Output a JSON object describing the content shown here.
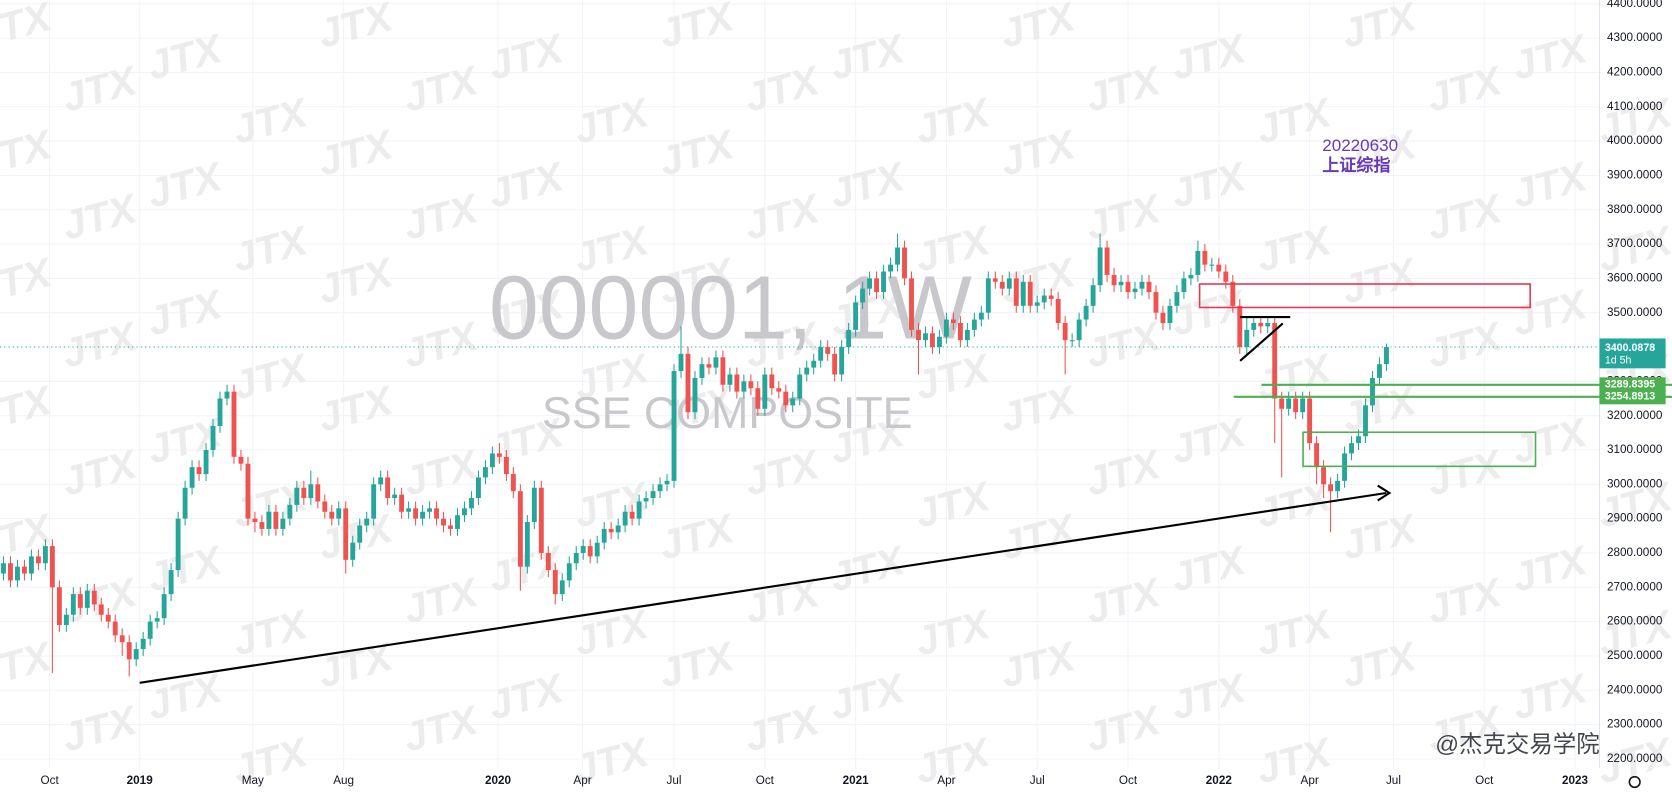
{
  "chart_data": {
    "type": "candlestick",
    "title": "000001, 1W",
    "subtitle": "SSE COMPOSITE",
    "annotations": [
      "20220630",
      "上证综指"
    ],
    "watermark": "JTX",
    "credit": "@杰克交易学院",
    "last_price_countdown": "1d 5h",
    "levels": [
      3289.8395,
      3254.8913
    ],
    "up_color": "#26a69a",
    "down_color": "#ef5350",
    "grid": true,
    "xlim": [
      -0.5,
      228.5
    ],
    "xticks": [
      {
        "value": 6.6,
        "label": "Oct"
      },
      {
        "value": 19.5,
        "label": "2019"
      },
      {
        "value": 35.7,
        "label": "May"
      },
      {
        "value": 48.7,
        "label": "Aug"
      },
      {
        "value": 70.8,
        "label": "2020"
      },
      {
        "value": 82.9,
        "label": "Apr"
      },
      {
        "value": 96,
        "label": "Jul"
      },
      {
        "value": 109,
        "label": "Oct"
      },
      {
        "value": 122,
        "label": "2021"
      },
      {
        "value": 135,
        "label": "Apr"
      },
      {
        "value": 148,
        "label": "Jul"
      },
      {
        "value": 161,
        "label": "Oct"
      },
      {
        "value": 174,
        "label": "2022"
      },
      {
        "value": 187,
        "label": "Apr"
      },
      {
        "value": 199,
        "label": "Jul"
      },
      {
        "value": 212,
        "label": "Oct"
      },
      {
        "value": 225,
        "label": "2023"
      }
    ],
    "ylim": [
      2170,
      4410
    ],
    "yticks": [
      {
        "value": 2200,
        "label": "2200.0000"
      },
      {
        "value": 2300,
        "label": "2300.0000"
      },
      {
        "value": 2400,
        "label": "2400.0000"
      },
      {
        "value": 2500,
        "label": "2500.0000"
      },
      {
        "value": 2600,
        "label": "2600.0000"
      },
      {
        "value": 2700,
        "label": "2700.0000"
      },
      {
        "value": 2800,
        "label": "2800.0000"
      },
      {
        "value": 2900,
        "label": "2900.0000"
      },
      {
        "value": 3000,
        "label": "3000.0000"
      },
      {
        "value": 3100,
        "label": "3100.0000"
      },
      {
        "value": 3200,
        "label": "3200.0000"
      },
      {
        "value": 3300,
        "label": "3300.0000"
      },
      {
        "value": 3400,
        "label": "3400.0000"
      },
      {
        "value": 3500,
        "label": "3500.0000"
      },
      {
        "value": 3600,
        "label": "3600.0000"
      },
      {
        "value": 3700,
        "label": "3700.0000"
      },
      {
        "value": 3800,
        "label": "3800.0000"
      },
      {
        "value": 3900,
        "label": "3900.0000"
      },
      {
        "value": 4000,
        "label": "4000.0000"
      },
      {
        "value": 4100,
        "label": "4100.0000"
      },
      {
        "value": 4200,
        "label": "4200.0000"
      },
      {
        "value": 4300,
        "label": "4300.0000"
      },
      {
        "value": 4400,
        "label": "4400.0000"
      }
    ],
    "candles": [
      [
        2740,
        2790,
        2720,
        2770
      ],
      [
        2770,
        2790,
        2700,
        2720
      ],
      [
        2720,
        2780,
        2700,
        2760
      ],
      [
        2760,
        2780,
        2720,
        2740
      ],
      [
        2740,
        2810,
        2720,
        2790
      ],
      [
        2790,
        2810,
        2750,
        2770
      ],
      [
        2770,
        2840,
        2750,
        2820
      ],
      [
        2820,
        2840,
        2450,
        2700
      ],
      [
        2700,
        2720,
        2570,
        2590
      ],
      [
        2590,
        2640,
        2570,
        2620
      ],
      [
        2620,
        2700,
        2600,
        2680
      ],
      [
        2680,
        2700,
        2620,
        2640
      ],
      [
        2640,
        2710,
        2620,
        2690
      ],
      [
        2690,
        2710,
        2630,
        2650
      ],
      [
        2650,
        2670,
        2600,
        2620
      ],
      [
        2620,
        2640,
        2580,
        2600
      ],
      [
        2600,
        2620,
        2540,
        2560
      ],
      [
        2560,
        2580,
        2500,
        2540
      ],
      [
        2540,
        2560,
        2440,
        2490
      ],
      [
        2490,
        2540,
        2470,
        2520
      ],
      [
        2520,
        2570,
        2500,
        2550
      ],
      [
        2550,
        2620,
        2530,
        2600
      ],
      [
        2600,
        2630,
        2580,
        2610
      ],
      [
        2610,
        2700,
        2590,
        2680
      ],
      [
        2680,
        2770,
        2660,
        2750
      ],
      [
        2750,
        2920,
        2730,
        2900
      ],
      [
        2900,
        3010,
        2880,
        2990
      ],
      [
        2990,
        3070,
        2970,
        3050
      ],
      [
        3050,
        3070,
        3010,
        3030
      ],
      [
        3030,
        3120,
        3010,
        3100
      ],
      [
        3100,
        3190,
        3080,
        3170
      ],
      [
        3170,
        3270,
        3150,
        3250
      ],
      [
        3250,
        3290,
        3230,
        3270
      ],
      [
        3270,
        3290,
        3060,
        3080
      ],
      [
        3080,
        3100,
        3040,
        3060
      ],
      [
        3060,
        3080,
        2880,
        2900
      ],
      [
        2900,
        2920,
        2860,
        2890
      ],
      [
        2890,
        2910,
        2850,
        2870
      ],
      [
        2870,
        2940,
        2850,
        2920
      ],
      [
        2920,
        2940,
        2850,
        2870
      ],
      [
        2870,
        2920,
        2850,
        2900
      ],
      [
        2900,
        2960,
        2880,
        2940
      ],
      [
        2940,
        3010,
        2920,
        2990
      ],
      [
        2990,
        3010,
        2940,
        2960
      ],
      [
        2960,
        3040,
        2940,
        3000
      ],
      [
        3000,
        3020,
        2930,
        2950
      ],
      [
        2950,
        2970,
        2900,
        2920
      ],
      [
        2920,
        2940,
        2880,
        2900
      ],
      [
        2900,
        2950,
        2880,
        2930
      ],
      [
        2930,
        2950,
        2740,
        2780
      ],
      [
        2780,
        2850,
        2760,
        2830
      ],
      [
        2830,
        2900,
        2810,
        2880
      ],
      [
        2880,
        2920,
        2860,
        2900
      ],
      [
        2900,
        3020,
        2880,
        3000
      ],
      [
        3000,
        3040,
        2980,
        3020
      ],
      [
        3020,
        3040,
        2940,
        2960
      ],
      [
        2960,
        2990,
        2940,
        2970
      ],
      [
        2970,
        2990,
        2900,
        2920
      ],
      [
        2920,
        2950,
        2900,
        2930
      ],
      [
        2930,
        2950,
        2880,
        2900
      ],
      [
        2900,
        2940,
        2880,
        2920
      ],
      [
        2920,
        2950,
        2900,
        2930
      ],
      [
        2930,
        2950,
        2880,
        2900
      ],
      [
        2900,
        2920,
        2860,
        2880
      ],
      [
        2880,
        2900,
        2850,
        2870
      ],
      [
        2870,
        2930,
        2850,
        2910
      ],
      [
        2910,
        2950,
        2890,
        2930
      ],
      [
        2930,
        2980,
        2910,
        2960
      ],
      [
        2960,
        3040,
        2940,
        3020
      ],
      [
        3020,
        3070,
        3000,
        3050
      ],
      [
        3050,
        3110,
        3030,
        3090
      ],
      [
        3090,
        3120,
        3060,
        3080
      ],
      [
        3080,
        3100,
        3010,
        3030
      ],
      [
        3030,
        3050,
        2960,
        2980
      ],
      [
        2980,
        3000,
        2690,
        2760
      ],
      [
        2760,
        2910,
        2740,
        2890
      ],
      [
        2890,
        3010,
        2870,
        2990
      ],
      [
        2990,
        3010,
        2780,
        2800
      ],
      [
        2800,
        2820,
        2730,
        2750
      ],
      [
        2750,
        2770,
        2650,
        2680
      ],
      [
        2680,
        2740,
        2660,
        2720
      ],
      [
        2720,
        2790,
        2700,
        2770
      ],
      [
        2770,
        2820,
        2750,
        2800
      ],
      [
        2800,
        2840,
        2780,
        2820
      ],
      [
        2820,
        2840,
        2770,
        2790
      ],
      [
        2790,
        2850,
        2770,
        2830
      ],
      [
        2830,
        2890,
        2810,
        2870
      ],
      [
        2870,
        2890,
        2840,
        2860
      ],
      [
        2860,
        2900,
        2840,
        2880
      ],
      [
        2880,
        2940,
        2860,
        2920
      ],
      [
        2920,
        2940,
        2880,
        2900
      ],
      [
        2900,
        2970,
        2880,
        2950
      ],
      [
        2950,
        2980,
        2930,
        2960
      ],
      [
        2960,
        3000,
        2940,
        2980
      ],
      [
        2980,
        3020,
        2960,
        3000
      ],
      [
        3000,
        3030,
        2980,
        3010
      ],
      [
        3010,
        3350,
        2990,
        3330
      ],
      [
        3330,
        3460,
        3310,
        3380
      ],
      [
        3380,
        3400,
        3190,
        3210
      ],
      [
        3210,
        3330,
        3190,
        3310
      ],
      [
        3310,
        3370,
        3290,
        3350
      ],
      [
        3350,
        3370,
        3320,
        3340
      ],
      [
        3340,
        3390,
        3320,
        3370
      ],
      [
        3370,
        3390,
        3270,
        3290
      ],
      [
        3290,
        3340,
        3270,
        3320
      ],
      [
        3320,
        3340,
        3250,
        3270
      ],
      [
        3270,
        3320,
        3250,
        3300
      ],
      [
        3300,
        3320,
        3260,
        3280
      ],
      [
        3280,
        3300,
        3200,
        3220
      ],
      [
        3220,
        3340,
        3200,
        3320
      ],
      [
        3320,
        3340,
        3260,
        3280
      ],
      [
        3280,
        3300,
        3250,
        3270
      ],
      [
        3270,
        3290,
        3210,
        3230
      ],
      [
        3230,
        3270,
        3210,
        3250
      ],
      [
        3250,
        3340,
        3230,
        3320
      ],
      [
        3320,
        3360,
        3300,
        3340
      ],
      [
        3340,
        3380,
        3320,
        3360
      ],
      [
        3360,
        3420,
        3340,
        3400
      ],
      [
        3400,
        3420,
        3360,
        3380
      ],
      [
        3380,
        3400,
        3300,
        3320
      ],
      [
        3320,
        3420,
        3300,
        3400
      ],
      [
        3400,
        3470,
        3380,
        3450
      ],
      [
        3450,
        3550,
        3430,
        3530
      ],
      [
        3530,
        3590,
        3510,
        3570
      ],
      [
        3570,
        3620,
        3550,
        3600
      ],
      [
        3600,
        3620,
        3540,
        3560
      ],
      [
        3560,
        3640,
        3540,
        3620
      ],
      [
        3620,
        3660,
        3600,
        3640
      ],
      [
        3640,
        3730,
        3620,
        3690
      ],
      [
        3690,
        3710,
        3580,
        3600
      ],
      [
        3600,
        3620,
        3430,
        3450
      ],
      [
        3450,
        3470,
        3320,
        3420
      ],
      [
        3420,
        3460,
        3400,
        3440
      ],
      [
        3440,
        3460,
        3380,
        3400
      ],
      [
        3400,
        3450,
        3380,
        3430
      ],
      [
        3430,
        3500,
        3410,
        3480
      ],
      [
        3480,
        3500,
        3450,
        3470
      ],
      [
        3470,
        3490,
        3400,
        3420
      ],
      [
        3420,
        3470,
        3400,
        3450
      ],
      [
        3450,
        3500,
        3430,
        3480
      ],
      [
        3480,
        3520,
        3460,
        3500
      ],
      [
        3500,
        3620,
        3480,
        3600
      ],
      [
        3600,
        3620,
        3570,
        3590
      ],
      [
        3590,
        3610,
        3550,
        3570
      ],
      [
        3570,
        3620,
        3550,
        3600
      ],
      [
        3600,
        3620,
        3500,
        3520
      ],
      [
        3520,
        3610,
        3500,
        3590
      ],
      [
        3590,
        3610,
        3500,
        3520
      ],
      [
        3520,
        3550,
        3500,
        3530
      ],
      [
        3530,
        3570,
        3510,
        3550
      ],
      [
        3550,
        3570,
        3520,
        3540
      ],
      [
        3540,
        3560,
        3450,
        3470
      ],
      [
        3470,
        3490,
        3320,
        3420
      ],
      [
        3420,
        3440,
        3400,
        3420
      ],
      [
        3420,
        3500,
        3400,
        3480
      ],
      [
        3480,
        3540,
        3460,
        3520
      ],
      [
        3520,
        3600,
        3500,
        3580
      ],
      [
        3580,
        3730,
        3560,
        3690
      ],
      [
        3690,
        3710,
        3590,
        3610
      ],
      [
        3610,
        3630,
        3560,
        3580
      ],
      [
        3580,
        3610,
        3560,
        3590
      ],
      [
        3590,
        3610,
        3540,
        3560
      ],
      [
        3560,
        3590,
        3540,
        3570
      ],
      [
        3570,
        3610,
        3550,
        3590
      ],
      [
        3590,
        3610,
        3540,
        3560
      ],
      [
        3560,
        3580,
        3480,
        3500
      ],
      [
        3500,
        3520,
        3450,
        3470
      ],
      [
        3470,
        3540,
        3450,
        3520
      ],
      [
        3520,
        3580,
        3500,
        3560
      ],
      [
        3560,
        3620,
        3540,
        3600
      ],
      [
        3600,
        3630,
        3580,
        3610
      ],
      [
        3610,
        3710,
        3590,
        3680
      ],
      [
        3680,
        3700,
        3620,
        3640
      ],
      [
        3640,
        3660,
        3620,
        3640
      ],
      [
        3640,
        3660,
        3600,
        3620
      ],
      [
        3620,
        3640,
        3570,
        3590
      ],
      [
        3590,
        3610,
        3500,
        3520
      ],
      [
        3520,
        3540,
        3380,
        3400
      ],
      [
        3400,
        3490,
        3380,
        3450
      ],
      [
        3450,
        3490,
        3430,
        3470
      ],
      [
        3470,
        3490,
        3440,
        3460
      ],
      [
        3460,
        3490,
        3440,
        3470
      ],
      [
        3470,
        3490,
        3120,
        3250
      ],
      [
        3250,
        3270,
        3020,
        3220
      ],
      [
        3220,
        3270,
        3200,
        3250
      ],
      [
        3250,
        3270,
        3190,
        3210
      ],
      [
        3210,
        3270,
        3190,
        3250
      ],
      [
        3250,
        3270,
        3100,
        3120
      ],
      [
        3120,
        3140,
        3000,
        3050
      ],
      [
        3050,
        3070,
        2960,
        3000
      ],
      [
        3000,
        3020,
        2860,
        2980
      ],
      [
        2980,
        3030,
        2960,
        3010
      ],
      [
        3010,
        3110,
        2990,
        3090
      ],
      [
        3090,
        3140,
        3070,
        3120
      ],
      [
        3120,
        3160,
        3100,
        3140
      ],
      [
        3140,
        3250,
        3120,
        3230
      ],
      [
        3230,
        3330,
        3210,
        3310
      ],
      [
        3310,
        3370,
        3290,
        3350
      ],
      [
        3350,
        3410,
        3330,
        3400.0878
      ]
    ]
  }
}
